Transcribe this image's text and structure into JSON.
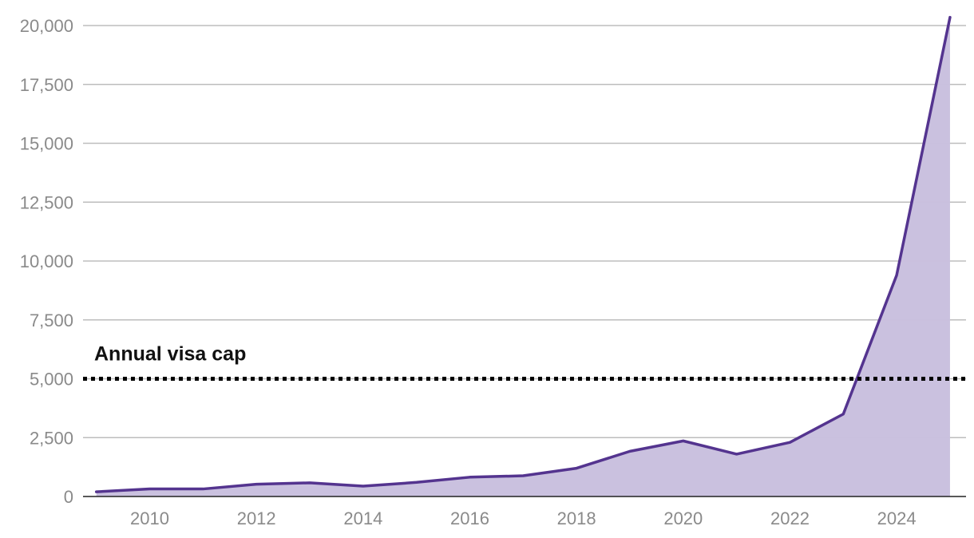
{
  "chart_data": {
    "type": "area",
    "title": "",
    "xlabel": "",
    "ylabel": "",
    "x": [
      2009,
      2010,
      2011,
      2012,
      2013,
      2014,
      2015,
      2016,
      2017,
      2018,
      2019,
      2020,
      2021,
      2022,
      2023,
      2024,
      2025
    ],
    "series": [
      {
        "values": [
          200,
          320,
          320,
          520,
          580,
          440,
          600,
          820,
          880,
          1200,
          1920,
          2360,
          1800,
          2300,
          3500,
          9400,
          20350
        ]
      }
    ],
    "xlim": [
      2008.75,
      2025.3
    ],
    "ylim": [
      0,
      20000
    ],
    "x_ticks": [
      "2010",
      "2012",
      "2014",
      "2016",
      "2018",
      "2020",
      "2022",
      "2024"
    ],
    "y_ticks": [
      "0",
      "2,500",
      "5,000",
      "7,500",
      "10,000",
      "12,500",
      "15,000",
      "17,500",
      "20,000"
    ],
    "grid": "horizontal",
    "reference_line": {
      "value": 5000,
      "label": "Annual visa cap",
      "style": "dotted"
    },
    "colors": {
      "line": "#54348f",
      "fill": "#c9c0de",
      "grid": "#bdbdbd",
      "reference": "#000000"
    }
  }
}
